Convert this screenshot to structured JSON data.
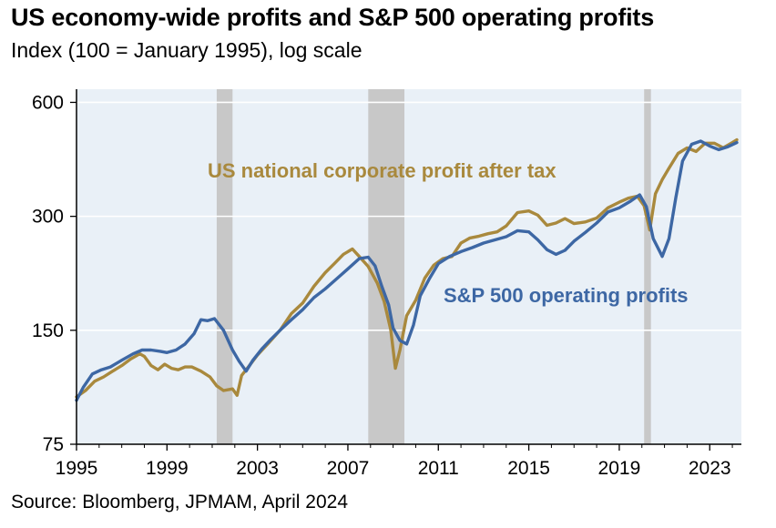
{
  "title": "US economy-wide profits and S&P 500 operating profits",
  "subtitle": "Index (100 = January 1995), log scale",
  "source": "Source: Bloomberg, JPMAM, April 2024",
  "colors": {
    "background": "#e9f0f7",
    "gridline": "#ffffff",
    "recession": "#c8c8c8",
    "national_profit": "#a9893d",
    "sp500": "#3d67a4"
  },
  "chart_data": {
    "type": "line",
    "log_scale_y": true,
    "ylim": [
      75,
      650
    ],
    "xlim": [
      1995.0,
      2024.4
    ],
    "y_ticks": [
      75,
      150,
      300,
      600
    ],
    "x_ticks": [
      1995,
      1999,
      2003,
      2007,
      2011,
      2015,
      2019,
      2023
    ],
    "gridlines": true,
    "recessions": [
      [
        2001.2,
        2001.9
      ],
      [
        2007.9,
        2009.5
      ],
      [
        2020.1,
        2020.4
      ]
    ],
    "series": [
      {
        "name": "US national corporate profit after tax",
        "points": [
          [
            1995.0,
            100
          ],
          [
            1995.4,
            104
          ],
          [
            1995.8,
            110
          ],
          [
            1996.2,
            113
          ],
          [
            1996.6,
            117
          ],
          [
            1997.0,
            121
          ],
          [
            1997.4,
            126
          ],
          [
            1997.8,
            130
          ],
          [
            1998.0,
            128
          ],
          [
            1998.3,
            121
          ],
          [
            1998.6,
            118
          ],
          [
            1998.9,
            122
          ],
          [
            1999.2,
            119
          ],
          [
            1999.5,
            118
          ],
          [
            1999.8,
            120
          ],
          [
            2000.1,
            120
          ],
          [
            2000.5,
            117
          ],
          [
            2000.9,
            113
          ],
          [
            2001.2,
            107
          ],
          [
            2001.5,
            104
          ],
          [
            2001.9,
            105
          ],
          [
            2002.1,
            101
          ],
          [
            2002.3,
            114
          ],
          [
            2002.6,
            120
          ],
          [
            2003.0,
            129
          ],
          [
            2003.5,
            139
          ],
          [
            2004.0,
            150
          ],
          [
            2004.5,
            166
          ],
          [
            2005.0,
            177
          ],
          [
            2005.5,
            196
          ],
          [
            2006.0,
            213
          ],
          [
            2006.4,
            225
          ],
          [
            2006.8,
            238
          ],
          [
            2007.2,
            246
          ],
          [
            2007.5,
            235
          ],
          [
            2007.9,
            221
          ],
          [
            2008.3,
            200
          ],
          [
            2008.6,
            179
          ],
          [
            2008.9,
            150
          ],
          [
            2009.1,
            119
          ],
          [
            2009.3,
            133
          ],
          [
            2009.6,
            164
          ],
          [
            2010.0,
            180
          ],
          [
            2010.4,
            206
          ],
          [
            2010.8,
            223
          ],
          [
            2011.2,
            232
          ],
          [
            2011.6,
            235
          ],
          [
            2012.0,
            255
          ],
          [
            2012.4,
            263
          ],
          [
            2012.8,
            266
          ],
          [
            2013.2,
            270
          ],
          [
            2013.6,
            273
          ],
          [
            2014.0,
            283
          ],
          [
            2014.5,
            307
          ],
          [
            2015.0,
            310
          ],
          [
            2015.4,
            302
          ],
          [
            2015.8,
            284
          ],
          [
            2016.2,
            288
          ],
          [
            2016.6,
            296
          ],
          [
            2017.0,
            287
          ],
          [
            2017.5,
            290
          ],
          [
            2018.0,
            297
          ],
          [
            2018.5,
            316
          ],
          [
            2019.0,
            327
          ],
          [
            2019.4,
            335
          ],
          [
            2019.8,
            339
          ],
          [
            2020.1,
            320
          ],
          [
            2020.35,
            276
          ],
          [
            2020.6,
            344
          ],
          [
            2020.9,
            375
          ],
          [
            2021.2,
            402
          ],
          [
            2021.6,
            440
          ],
          [
            2022.0,
            455
          ],
          [
            2022.4,
            445
          ],
          [
            2022.8,
            468
          ],
          [
            2023.2,
            468
          ],
          [
            2023.6,
            455
          ],
          [
            2024.0,
            470
          ],
          [
            2024.2,
            478
          ]
        ]
      },
      {
        "name": "S&P 500 operating profits",
        "points": [
          [
            1995.0,
            98
          ],
          [
            1995.3,
            106
          ],
          [
            1995.7,
            115
          ],
          [
            1996.1,
            118
          ],
          [
            1996.5,
            120
          ],
          [
            1997.0,
            125
          ],
          [
            1997.5,
            130
          ],
          [
            1997.9,
            133
          ],
          [
            1998.3,
            133
          ],
          [
            1998.7,
            132
          ],
          [
            1999.0,
            131
          ],
          [
            1999.4,
            133
          ],
          [
            1999.8,
            138
          ],
          [
            2000.2,
            147
          ],
          [
            2000.5,
            160
          ],
          [
            2000.8,
            159
          ],
          [
            2001.1,
            161
          ],
          [
            2001.5,
            150
          ],
          [
            2001.9,
            133
          ],
          [
            2002.2,
            124
          ],
          [
            2002.5,
            117
          ],
          [
            2002.8,
            125
          ],
          [
            2003.2,
            134
          ],
          [
            2003.6,
            142
          ],
          [
            2004.0,
            150
          ],
          [
            2004.5,
            160
          ],
          [
            2005.0,
            170
          ],
          [
            2005.5,
            183
          ],
          [
            2006.0,
            193
          ],
          [
            2006.5,
            205
          ],
          [
            2007.0,
            218
          ],
          [
            2007.5,
            232
          ],
          [
            2007.9,
            234
          ],
          [
            2008.2,
            222
          ],
          [
            2008.5,
            196
          ],
          [
            2008.8,
            175
          ],
          [
            2009.0,
            152
          ],
          [
            2009.3,
            141
          ],
          [
            2009.6,
            138
          ],
          [
            2009.9,
            155
          ],
          [
            2010.2,
            185
          ],
          [
            2010.6,
            205
          ],
          [
            2011.0,
            225
          ],
          [
            2011.5,
            235
          ],
          [
            2012.0,
            242
          ],
          [
            2012.5,
            248
          ],
          [
            2013.0,
            255
          ],
          [
            2013.5,
            260
          ],
          [
            2014.0,
            265
          ],
          [
            2014.5,
            275
          ],
          [
            2015.0,
            273
          ],
          [
            2015.4,
            260
          ],
          [
            2015.8,
            245
          ],
          [
            2016.2,
            238
          ],
          [
            2016.6,
            244
          ],
          [
            2017.0,
            258
          ],
          [
            2017.5,
            272
          ],
          [
            2018.0,
            288
          ],
          [
            2018.5,
            308
          ],
          [
            2019.0,
            316
          ],
          [
            2019.5,
            329
          ],
          [
            2019.9,
            342
          ],
          [
            2020.2,
            318
          ],
          [
            2020.5,
            262
          ],
          [
            2020.9,
            235
          ],
          [
            2021.2,
            262
          ],
          [
            2021.5,
            336
          ],
          [
            2021.8,
            420
          ],
          [
            2022.2,
            465
          ],
          [
            2022.6,
            474
          ],
          [
            2023.0,
            460
          ],
          [
            2023.4,
            450
          ],
          [
            2023.8,
            458
          ],
          [
            2024.2,
            470
          ]
        ]
      }
    ]
  }
}
